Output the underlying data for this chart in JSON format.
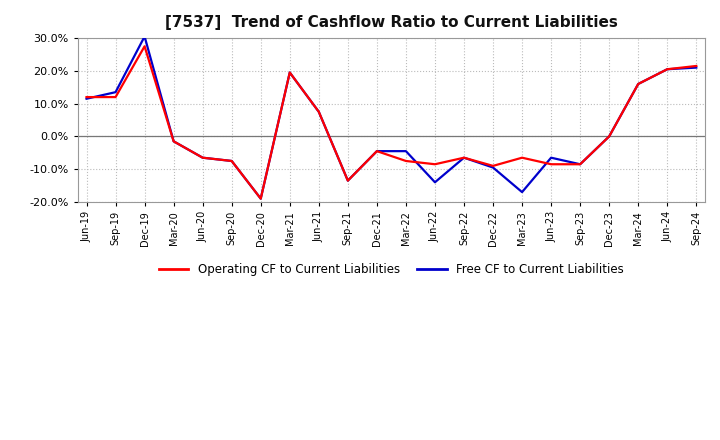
{
  "title": "[7537]  Trend of Cashflow Ratio to Current Liabilities",
  "x_labels": [
    "Jun-19",
    "Sep-19",
    "Dec-19",
    "Mar-20",
    "Jun-20",
    "Sep-20",
    "Dec-20",
    "Mar-21",
    "Jun-21",
    "Sep-21",
    "Dec-21",
    "Mar-22",
    "Jun-22",
    "Sep-22",
    "Dec-22",
    "Mar-23",
    "Jun-23",
    "Sep-23",
    "Dec-23",
    "Mar-24",
    "Jun-24",
    "Sep-24"
  ],
  "operating_cf": [
    12.0,
    12.0,
    27.5,
    -1.5,
    -6.5,
    -7.5,
    -19.0,
    19.5,
    7.5,
    -13.5,
    -4.5,
    -7.5,
    -8.5,
    -6.5,
    -9.0,
    -6.5,
    -8.5,
    -8.5,
    0.0,
    16.0,
    20.5,
    21.5
  ],
  "free_cf": [
    11.5,
    13.5,
    30.5,
    -1.5,
    -6.5,
    -7.5,
    -19.0,
    19.5,
    7.5,
    -13.5,
    -4.5,
    -4.5,
    -14.0,
    -6.5,
    -9.5,
    -17.0,
    -6.5,
    -8.5,
    0.0,
    16.0,
    20.5,
    21.0
  ],
  "operating_color": "#ff0000",
  "free_color": "#0000cc",
  "ylim": [
    -20.0,
    30.0
  ],
  "yticks": [
    -20.0,
    -10.0,
    0.0,
    10.0,
    20.0,
    30.0
  ],
  "background_color": "#ffffff",
  "plot_bg_color": "#ffffff",
  "grid_color": "#bbbbbb",
  "title_fontsize": 11,
  "legend_label_operating": "Operating CF to Current Liabilities",
  "legend_label_free": "Free CF to Current Liabilities"
}
